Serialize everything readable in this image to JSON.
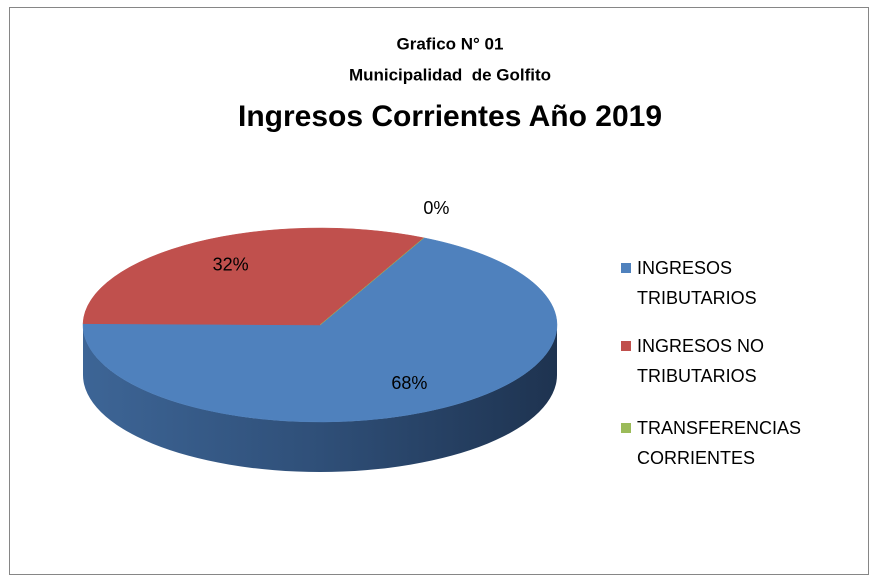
{
  "chart_data": {
    "type": "pie3d",
    "title": [
      "Grafico N° 01",
      "Municipalidad  de Golfito",
      "Ingresos Corrientes Año 2019"
    ],
    "categories": [
      "INGRESOS TRIBUTARIOS",
      "INGRESOS NO TRIBUTARIOS",
      "TRANSFERENCIAS CORRIENTES"
    ],
    "values": [
      68,
      32,
      0
    ],
    "value_labels": [
      "68%",
      "32%",
      "0%"
    ],
    "colors": [
      "#4f81bd",
      "#c0504d",
      "#9bbb59"
    ],
    "legend": "right"
  }
}
